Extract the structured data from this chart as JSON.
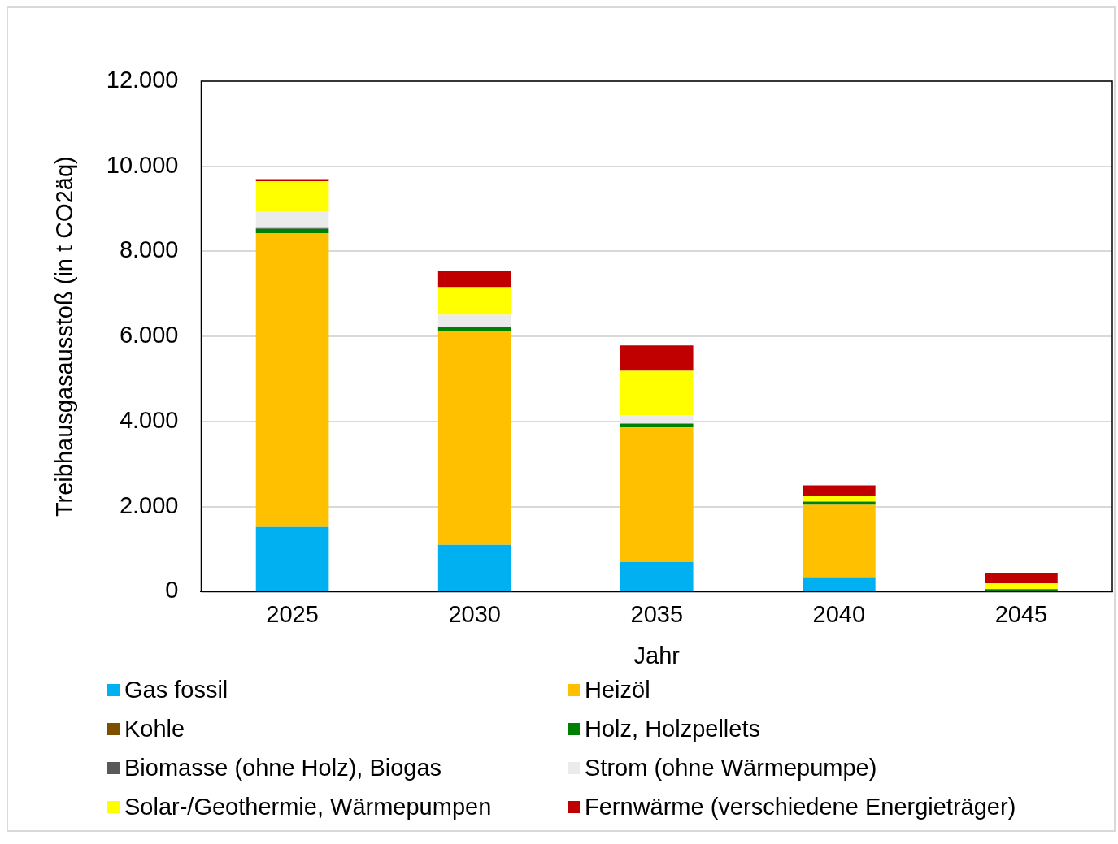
{
  "chart_data": {
    "type": "bar",
    "stacked": true,
    "xlabel": "Jahr",
    "ylabel": "Treibhausgasausstoß (in t CO2äq)",
    "categories": [
      "2025",
      "2030",
      "2035",
      "2040",
      "2045"
    ],
    "series": [
      {
        "name": "Gas fossil",
        "color": "#00b0f0",
        "values": [
          1520,
          1100,
          700,
          340,
          0
        ]
      },
      {
        "name": "Heizöl",
        "color": "#ffc000",
        "values": [
          6910,
          5030,
          3160,
          1700,
          0
        ]
      },
      {
        "name": "Kohle",
        "color": "#7f4f00",
        "values": [
          0,
          0,
          0,
          0,
          0
        ]
      },
      {
        "name": "Holz, Holzpellets",
        "color": "#008000",
        "values": [
          100,
          100,
          90,
          80,
          60
        ]
      },
      {
        "name": "Biomasse (ohne Holz), Biogas",
        "color": "#595959",
        "values": [
          20,
          0,
          0,
          0,
          0
        ]
      },
      {
        "name": "Strom (ohne Wärmepumpe)",
        "color": "#ebebeb",
        "values": [
          380,
          280,
          190,
          null,
          0
        ]
      },
      {
        "name": "Solar-/Geothermie, Wärmepumpen",
        "color": "#ffff00",
        "values": [
          720,
          650,
          1050,
          120,
          140
        ]
      },
      {
        "name": "Fernwärme (verschiedene Energieträger)",
        "color": "#c00000",
        "values": [
          50,
          380,
          600,
          260,
          240
        ]
      }
    ],
    "ylim": [
      0,
      12000
    ],
    "yticks": [
      0,
      {
        "value": 2000,
        "label": "2.000"
      },
      {
        "value": 4000,
        "label": "4.000"
      },
      {
        "value": 6000,
        "label": "6.000"
      },
      {
        "value": 8000,
        "label": "8.000"
      },
      {
        "value": 10000,
        "label": "10.000"
      },
      {
        "value": 12000,
        "label": "12.000"
      }
    ],
    "grid": "y",
    "legend": "bottom"
  }
}
